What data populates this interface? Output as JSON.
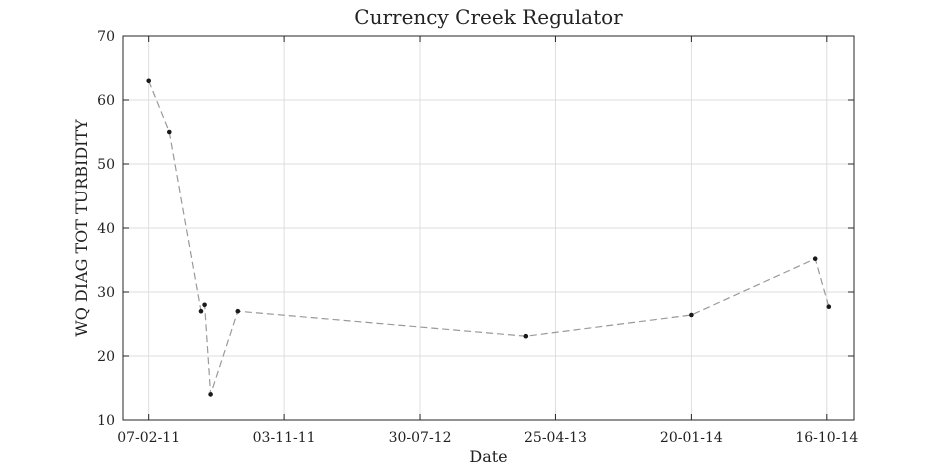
{
  "chart_data": {
    "type": "line",
    "title": "Currency Creek Regulator",
    "xlabel": "Date",
    "ylabel": "WQ DIAG TOT TURBIDITY",
    "x_ticks": [
      "07-02-11",
      "03-11-11",
      "30-07-12",
      "25-04-13",
      "20-01-14",
      "16-10-14"
    ],
    "xlim": [
      "2010-12-18",
      "2014-12-09"
    ],
    "ylim": [
      10,
      70
    ],
    "y_ticks": [
      10,
      20,
      30,
      40,
      50,
      60,
      70
    ],
    "grid": true,
    "series": [
      {
        "line_style": "dashed",
        "line_color": "#999999",
        "marker_color": "#1a1a1a",
        "x": [
          "2011-02-07",
          "2011-03-20",
          "2011-05-22",
          "2011-05-29",
          "2011-06-10",
          "2011-08-03",
          "2013-02-25",
          "2014-01-20",
          "2014-09-23",
          "2014-10-20"
        ],
        "y": [
          63,
          55,
          27,
          28,
          14,
          27,
          23.1,
          26.4,
          35.2,
          27.7
        ]
      }
    ]
  }
}
